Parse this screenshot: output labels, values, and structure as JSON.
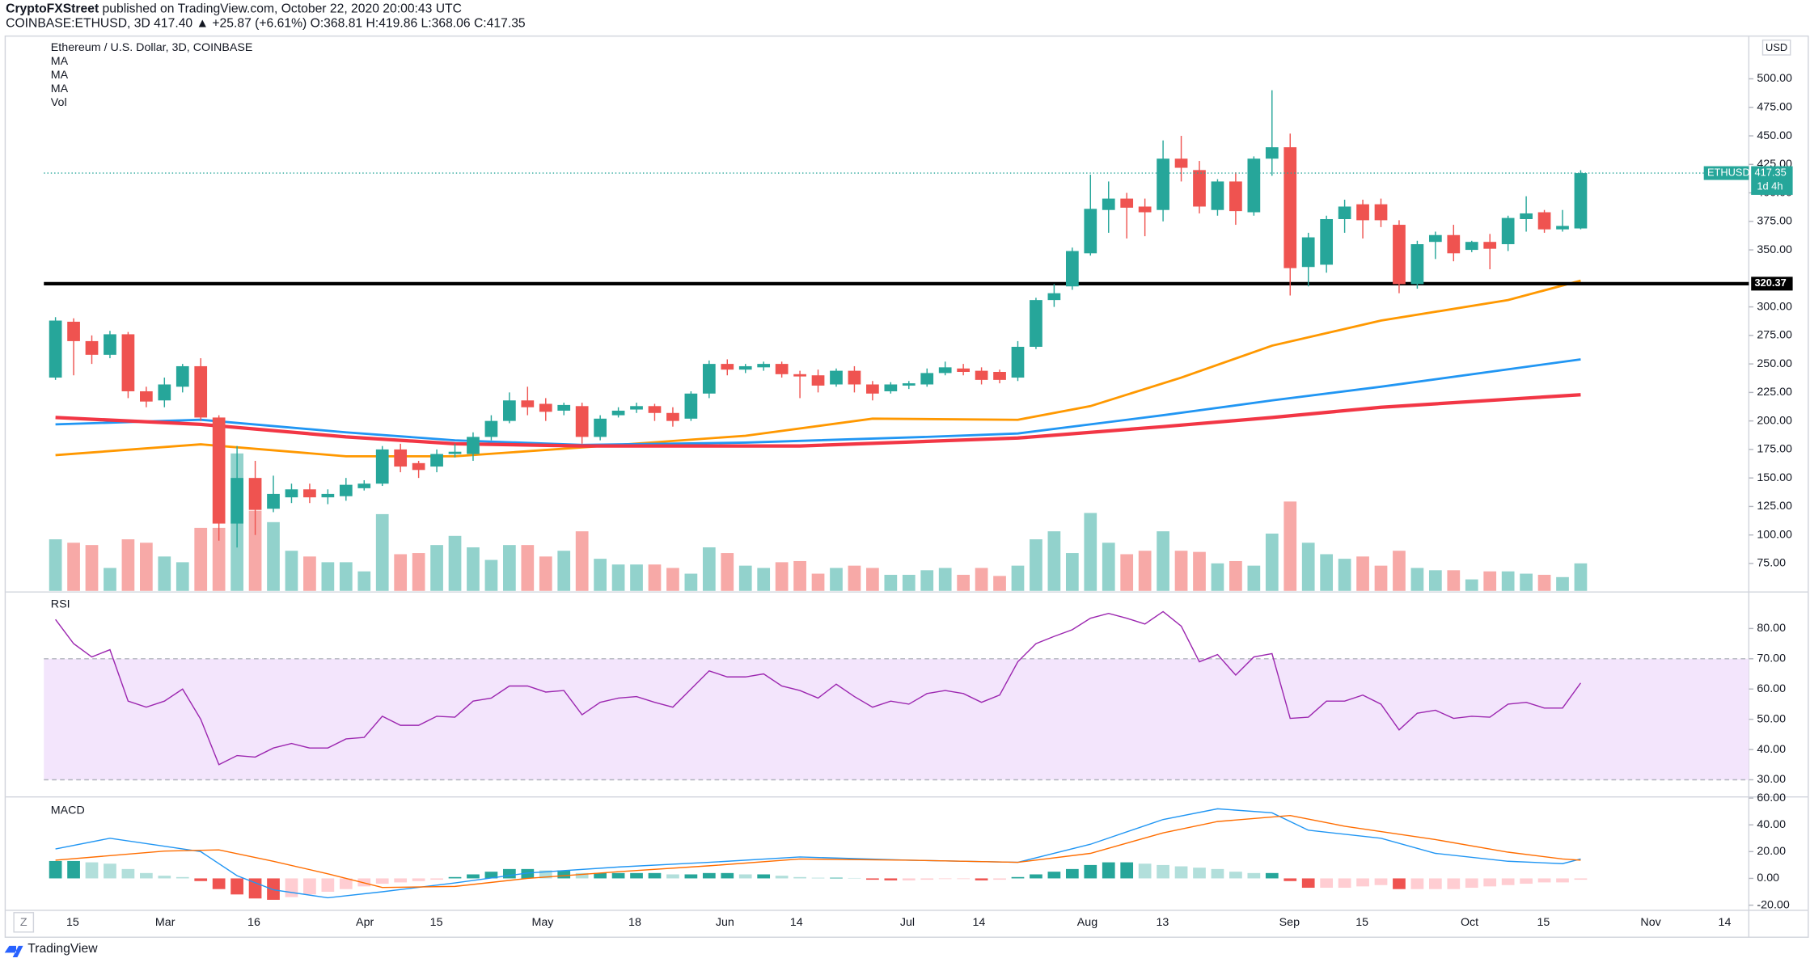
{
  "header": {
    "publisher": "CryptoFXStreet",
    "published": "published on TradingView.com, October 22, 2020 20:00:43 UTC",
    "symbol": "COINBASE:ETHUSD, 3D",
    "last": "417.40",
    "change": "▲ +25.87 (+6.61%)",
    "ohlc": [
      "O:368.81",
      "H:419.86",
      "L:368.06",
      "C:417.35"
    ]
  },
  "footer": {
    "brand": "TradingView",
    "zoom": "Z"
  },
  "chart_data": [
    {
      "type": "candlestick",
      "title": "Ethereum / U.S. Dollar, 3D, COINBASE",
      "currency": "USD",
      "volume_label": "Vol",
      "xlim": [
        -0.64,
        93.26
      ],
      "xticks": [
        {
          "value": 0.95,
          "label": "15"
        },
        {
          "value": 6.04,
          "label": "Mar"
        },
        {
          "value": 10.93,
          "label": "16"
        },
        {
          "value": 17.04,
          "label": "Apr"
        },
        {
          "value": 20.98,
          "label": "15"
        },
        {
          "value": 26.83,
          "label": "May"
        },
        {
          "value": 31.91,
          "label": "18"
        },
        {
          "value": 36.87,
          "label": "Jun"
        },
        {
          "value": 40.81,
          "label": "14"
        },
        {
          "value": 46.92,
          "label": "Jul"
        },
        {
          "value": 50.86,
          "label": "14"
        },
        {
          "value": 56.83,
          "label": "Aug"
        },
        {
          "value": 60.97,
          "label": "13"
        },
        {
          "value": 67.96,
          "label": "Sep"
        },
        {
          "value": 71.96,
          "label": "15"
        },
        {
          "value": 77.88,
          "label": "Oct"
        },
        {
          "value": 81.95,
          "label": "15"
        },
        {
          "value": 87.86,
          "label": "Nov"
        },
        {
          "value": 91.93,
          "label": "14"
        }
      ],
      "ylim": [
        51,
        537
      ],
      "yticks": [
        {
          "value": 75,
          "label": "75.00"
        },
        {
          "value": 100,
          "label": "100.00"
        },
        {
          "value": 125,
          "label": "125.00"
        },
        {
          "value": 150,
          "label": "150.00"
        },
        {
          "value": 175,
          "label": "175.00"
        },
        {
          "value": 200,
          "label": "200.00"
        },
        {
          "value": 225,
          "label": "225.00"
        },
        {
          "value": 250,
          "label": "250.00"
        },
        {
          "value": 275,
          "label": "275.00"
        },
        {
          "value": 300,
          "label": "300.00"
        },
        {
          "value": 350,
          "label": "350.00"
        },
        {
          "value": 375,
          "label": "375.00"
        },
        {
          "value": 400,
          "label": "400.00"
        },
        {
          "value": 425,
          "label": "425.00"
        },
        {
          "value": 450,
          "label": "450.00"
        },
        {
          "value": 475,
          "label": "475.00"
        },
        {
          "value": 500,
          "label": "500.00"
        }
      ],
      "open": [
        238,
        287,
        270,
        258,
        276,
        226,
        218,
        230,
        248,
        203,
        110,
        150,
        123,
        133,
        140,
        133,
        134,
        141,
        145,
        175,
        163,
        160,
        171,
        171,
        186,
        200,
        218,
        215,
        209,
        213,
        186,
        205,
        210,
        213,
        207,
        202,
        224,
        250,
        245,
        247,
        250,
        241,
        240,
        232,
        244,
        232,
        226,
        231,
        232,
        242,
        246,
        244,
        243,
        238,
        265,
        306,
        318,
        347,
        385,
        395,
        388,
        385,
        430,
        420,
        385,
        410,
        383,
        430,
        440,
        335,
        337,
        377,
        390,
        390,
        372,
        320,
        357,
        363,
        350,
        357,
        355,
        377,
        383,
        368,
        368.81
      ],
      "high": [
        291,
        290,
        275,
        279,
        278,
        230,
        238,
        250,
        255,
        205,
        178,
        165,
        152,
        145,
        145,
        140,
        150,
        148,
        178,
        180,
        165,
        175,
        180,
        190,
        205,
        225,
        230,
        220,
        216,
        216,
        205,
        212,
        216,
        215,
        212,
        226,
        253,
        254,
        250,
        252,
        252,
        244,
        245,
        246,
        248,
        235,
        234,
        235,
        246,
        252,
        250,
        247,
        245,
        270,
        308,
        320,
        352,
        416,
        410,
        400,
        395,
        446,
        450,
        428,
        412,
        418,
        432,
        490,
        452,
        365,
        380,
        394,
        394,
        395,
        376,
        358,
        366,
        372,
        358,
        364,
        380,
        397,
        385,
        385,
        419.86
      ],
      "low": [
        236,
        240,
        250,
        255,
        220,
        212,
        212,
        225,
        200,
        95,
        89,
        100,
        120,
        128,
        128,
        127,
        130,
        139,
        143,
        155,
        150,
        155,
        168,
        165,
        183,
        198,
        205,
        200,
        205,
        180,
        183,
        203,
        207,
        200,
        195,
        200,
        220,
        240,
        242,
        244,
        238,
        220,
        225,
        230,
        225,
        218,
        224,
        228,
        230,
        240,
        240,
        232,
        233,
        235,
        263,
        300,
        315,
        345,
        365,
        360,
        362,
        375,
        410,
        382,
        380,
        372,
        380,
        415,
        310,
        318,
        330,
        365,
        360,
        370,
        312,
        316,
        342,
        340,
        348,
        333,
        349,
        366,
        365,
        366,
        368.06
      ],
      "close": [
        288,
        270,
        258,
        276,
        226,
        217,
        232,
        248,
        203,
        110,
        150,
        122,
        136,
        140,
        133,
        136,
        144,
        145,
        175,
        160,
        157,
        171,
        173,
        186,
        200,
        218,
        212,
        208,
        214,
        186,
        202,
        209,
        213,
        207,
        200,
        224,
        250,
        245,
        248,
        250,
        241,
        239,
        231,
        244,
        232,
        224,
        232,
        233,
        242,
        247,
        243,
        236,
        236,
        265,
        306,
        312,
        349,
        386,
        395,
        387,
        383,
        430,
        422,
        388,
        410,
        384,
        430,
        440,
        334,
        361,
        377,
        388,
        376,
        376,
        320,
        355,
        363,
        347,
        357,
        351,
        378,
        382,
        368,
        371,
        417.35
      ],
      "up_color": "#26a69a",
      "down_color": "#ef5350",
      "volume": [
        45,
        42,
        40,
        20,
        45,
        42,
        30,
        25,
        55,
        55,
        120,
        70,
        60,
        35,
        30,
        25,
        25,
        17,
        67,
        32,
        33,
        40,
        48,
        38,
        27,
        40,
        40,
        30,
        35,
        52,
        28,
        23,
        23,
        23,
        20,
        15,
        38,
        33,
        22,
        20,
        25,
        26,
        15,
        20,
        22,
        20,
        14,
        14,
        18,
        20,
        14,
        20,
        13,
        22,
        45,
        52,
        33,
        68,
        42,
        32,
        35,
        52,
        35,
        34,
        24,
        26,
        22,
        50,
        78,
        42,
        32,
        28,
        30,
        22,
        35,
        20,
        18,
        18,
        10,
        17,
        17,
        15,
        14,
        12,
        24
      ],
      "volume_ylim": [
        0,
        484
      ],
      "series": [
        {
          "name": "MA",
          "color": "#ff9800",
          "x": [
            0,
            8,
            16,
            22,
            31,
            38,
            45,
            53,
            57,
            62,
            67,
            73,
            80,
            84
          ],
          "values": [
            170,
            179.5,
            169,
            169,
            179,
            187,
            202,
            201,
            213,
            238,
            266,
            288,
            306,
            323
          ]
        },
        {
          "name": "MA",
          "color": "#2196f3",
          "x": [
            0,
            8,
            16,
            22,
            29,
            38,
            48,
            53,
            61,
            67,
            73,
            84
          ],
          "values": [
            197,
            201,
            190,
            183,
            179,
            181,
            186,
            189,
            205,
            218,
            230,
            254
          ]
        },
        {
          "name": "MA",
          "color": "#f23645",
          "x": [
            0,
            8,
            16,
            22,
            29,
            41,
            53,
            61,
            67,
            73,
            84
          ],
          "values": [
            203,
            197,
            186,
            180,
            178,
            178,
            185,
            195,
            203,
            212,
            223
          ]
        }
      ],
      "hline": {
        "value": 320.37,
        "color": "#000000"
      },
      "last_price": {
        "symbol": "ETHUSD",
        "value": 417.35,
        "countdown": "1d 4h",
        "color": "#26a69a"
      }
    },
    {
      "type": "line",
      "title": "RSI",
      "color": "#9c27b0",
      "ylim": [
        24.7,
        91.7
      ],
      "yticks": [
        {
          "value": 30,
          "label": "30.00"
        },
        {
          "value": 40,
          "label": "40.00"
        },
        {
          "value": 50,
          "label": "50.00"
        },
        {
          "value": 60,
          "label": "60.00"
        },
        {
          "value": 70,
          "label": "70.00"
        },
        {
          "value": 80,
          "label": "80.00"
        }
      ],
      "band": [
        30,
        70
      ],
      "band_color": "#f3e5fc",
      "values": [
        83,
        75,
        70.6,
        73,
        56,
        54,
        56,
        60,
        50,
        35,
        38,
        37.5,
        40.5,
        42,
        40.5,
        40.5,
        43.5,
        44,
        51,
        48,
        48,
        51,
        50.7,
        56,
        57,
        61,
        61,
        59,
        59.5,
        51.5,
        55.6,
        57,
        57.5,
        55.6,
        54,
        60,
        66,
        64,
        64,
        65,
        61,
        59.5,
        57,
        61.6,
        57.5,
        54,
        56,
        55,
        58.5,
        59.5,
        58.5,
        55.6,
        58,
        69,
        75,
        77.4,
        79.6,
        83.4,
        85,
        83.4,
        81.5,
        85.6,
        80.8,
        69,
        71.4,
        64.6,
        70.6,
        71.7,
        50.3,
        50.7,
        56,
        56,
        58,
        55,
        46.5,
        52,
        53,
        50.3,
        51,
        50.7,
        55,
        55.6,
        53.7,
        53.7,
        62
      ]
    },
    {
      "type": "macd",
      "title": "MACD",
      "ylim": [
        -23,
        60
      ],
      "yticks": [
        {
          "value": -20,
          "label": "-20.00"
        },
        {
          "value": 0,
          "label": "0.00"
        },
        {
          "value": 20,
          "label": "20.00"
        },
        {
          "value": 40,
          "label": "40.00"
        },
        {
          "value": 60,
          "label": "60.00"
        }
      ],
      "histogram": [
        13,
        13,
        12,
        11,
        7,
        4,
        2,
        1,
        -2,
        -8,
        -12,
        -15,
        -16,
        -14,
        -12,
        -10,
        -8,
        -6,
        -4,
        -3,
        -2,
        -1,
        1,
        3,
        5,
        7,
        7,
        6,
        6,
        4,
        4,
        4,
        4,
        4,
        3,
        3,
        4,
        4,
        3,
        3,
        2,
        1,
        0.5,
        0.5,
        0.3,
        -1,
        -1.5,
        -1.5,
        -1,
        -0.5,
        -0.5,
        -1.5,
        -1,
        1,
        3,
        5,
        7,
        10,
        12,
        12,
        11,
        10,
        9,
        8,
        7,
        5,
        4,
        4,
        -2,
        -7,
        -7,
        -7,
        -6,
        -5,
        -8,
        -8,
        -8,
        -8,
        -7,
        -6,
        -5,
        -4,
        -3,
        -3,
        -1
      ],
      "histogram_colors": [
        "#26a69a",
        "#b2dfdb",
        "#ffcdd2",
        "#ef5350"
      ],
      "series": [
        {
          "color": "#2196f3",
          "x": [
            0,
            3,
            6,
            8,
            10,
            12,
            15,
            18,
            22,
            26,
            31,
            36,
            41,
            47,
            53,
            57,
            61,
            64,
            67,
            69,
            73,
            76,
            80,
            83,
            84
          ],
          "values": [
            22,
            30,
            24,
            20,
            2,
            -8.5,
            -14.5,
            -10,
            -3.4,
            4,
            8.5,
            12,
            16,
            13.6,
            12,
            25.5,
            44,
            52,
            49,
            36,
            30,
            18.7,
            12.8,
            11,
            14.5
          ]
        },
        {
          "color": "#ff6d00",
          "x": [
            0,
            3,
            6,
            9,
            12,
            15,
            18,
            22,
            26,
            31,
            36,
            41,
            47,
            53,
            57,
            61,
            64,
            68,
            71,
            76,
            80,
            83,
            84
          ],
          "values": [
            13.6,
            17,
            20.4,
            21.3,
            12.8,
            3.4,
            -6.8,
            -6,
            0,
            5,
            9.4,
            14.5,
            13.6,
            12,
            18.7,
            34,
            42.5,
            47,
            39,
            29,
            19.6,
            14.5,
            13.6
          ]
        }
      ]
    }
  ]
}
